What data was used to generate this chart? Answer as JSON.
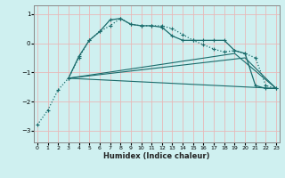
{
  "xlabel": "Humidex (Indice chaleur)",
  "bg_color": "#cff0f0",
  "grid_color": "#e8b8b8",
  "line_color": "#1a6b6b",
  "x_ticks": [
    0,
    1,
    2,
    3,
    4,
    5,
    6,
    7,
    8,
    9,
    10,
    11,
    12,
    13,
    14,
    15,
    16,
    17,
    18,
    19,
    20,
    21,
    22,
    23
  ],
  "ylim": [
    -3.4,
    1.3
  ],
  "xlim": [
    -0.3,
    23.3
  ],
  "yticks": [
    -3,
    -2,
    -1,
    0,
    1
  ],
  "line1_x": [
    0,
    1,
    2,
    3,
    4,
    5,
    6,
    7,
    8,
    9,
    10,
    11,
    12,
    13,
    14,
    15,
    16,
    17,
    18,
    19,
    20,
    21,
    22,
    23
  ],
  "line1_y": [
    -2.8,
    -2.3,
    -1.6,
    -1.2,
    -0.5,
    0.1,
    0.4,
    0.6,
    0.85,
    0.65,
    0.6,
    0.6,
    0.6,
    0.5,
    0.3,
    0.1,
    -0.05,
    -0.2,
    -0.3,
    -0.25,
    -0.35,
    -0.5,
    -1.45,
    -1.55
  ],
  "line2_x": [
    3,
    4,
    5,
    6,
    7,
    8,
    9,
    10,
    11,
    12,
    13,
    14,
    15,
    16,
    17,
    18,
    19,
    20,
    21,
    22,
    23
  ],
  "line2_y": [
    -1.2,
    -0.45,
    0.1,
    0.4,
    0.8,
    0.85,
    0.65,
    0.6,
    0.6,
    0.55,
    0.25,
    0.1,
    0.1,
    0.1,
    0.1,
    0.1,
    -0.25,
    -0.35,
    -1.45,
    -1.55,
    -1.55
  ],
  "line3_x": [
    3,
    23
  ],
  "line3_y": [
    -1.2,
    -1.55
  ],
  "line4_x": [
    3,
    19,
    23
  ],
  "line4_y": [
    -1.2,
    -0.35,
    -1.55
  ],
  "line5_x": [
    3,
    20,
    23
  ],
  "line5_y": [
    -1.2,
    -0.5,
    -1.55
  ]
}
